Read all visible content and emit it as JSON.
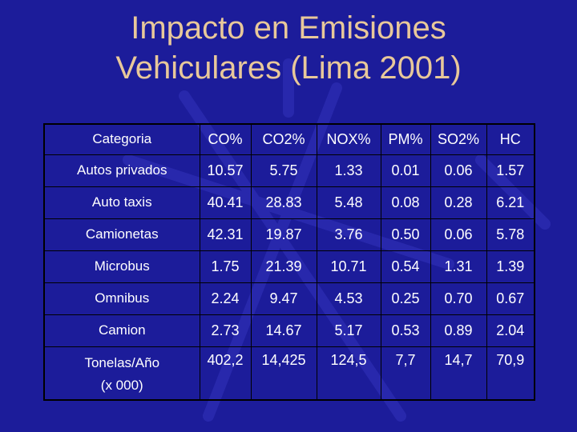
{
  "slide": {
    "title_line1": "Impacto en Emisiones",
    "title_line2": "Vehiculares (Lima 2001)"
  },
  "table": {
    "headers": [
      "Categoria",
      "CO%",
      "CO2%",
      "NOX%",
      "PM%",
      "SO2%",
      "HC"
    ],
    "rows": [
      [
        "Autos privados",
        "10.57",
        "5.75",
        "1.33",
        "0.01",
        "0.06",
        "1.57"
      ],
      [
        "Auto taxis",
        "40.41",
        "28.83",
        "5.48",
        "0.08",
        "0.28",
        "6.21"
      ],
      [
        "Camionetas",
        "42.31",
        "19.87",
        "3.76",
        "0.50",
        "0.06",
        "5.78"
      ],
      [
        "Microbus",
        "1.75",
        "21.39",
        "10.71",
        "0.54",
        "1.31",
        "1.39"
      ],
      [
        "Omnibus",
        "2.24",
        "9.47",
        "4.53",
        "0.25",
        "0.70",
        "0.67"
      ],
      [
        "Camion",
        "2.73",
        "14.67",
        "5.17",
        "0.53",
        "0.89",
        "2.04"
      ]
    ],
    "last_row": {
      "label_line1": "Tonelas/Año",
      "label_line2": "(x 000)",
      "values": [
        "402,2",
        "14,425",
        "124,5",
        "7,7",
        "14,7",
        "70,9"
      ]
    }
  },
  "colors": {
    "background": "#1c1c9a",
    "title": "#e8c89a",
    "text": "#ffffff"
  }
}
